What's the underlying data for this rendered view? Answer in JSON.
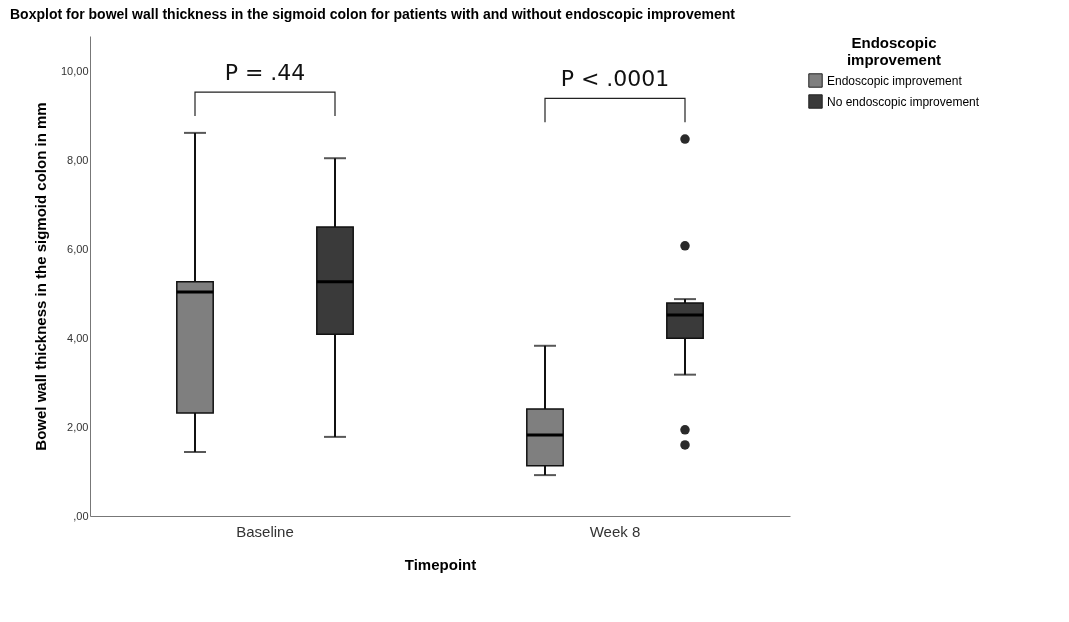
{
  "chart_data": {
    "type": "box",
    "title": "Boxplot for bowel wall thickness in the sigmoid colon for patients with and without endoscopic improvement",
    "xlabel": "Timepoint",
    "ylabel": "Bowel wall thickness in the sigmoid colon in mm",
    "legend_title": "Endoscopic improvement",
    "legend": "top right",
    "categories": [
      "Baseline",
      "Week 8"
    ],
    "ylim": [
      0,
      10.8
    ],
    "yticks": [
      {
        "value": 0,
        "label": ",00"
      },
      {
        "value": 2,
        "label": "2,00"
      },
      {
        "value": 4,
        "label": "4,00"
      },
      {
        "value": 6,
        "label": "6,00"
      },
      {
        "value": 8,
        "label": "8,00"
      },
      {
        "value": 10,
        "label": "10,00"
      }
    ],
    "annotations": [
      "P = .44",
      "P < .0001"
    ],
    "series": [
      {
        "name": "Endoscopic improvement",
        "color": "#7f7f7f",
        "boxes": [
          {
            "low": 1.44,
            "q1": 2.32,
            "median": 5.04,
            "q3": 5.27,
            "high": 8.62
          },
          {
            "low": 0.92,
            "q1": 1.13,
            "median": 1.82,
            "q3": 2.41,
            "high": 3.83
          }
        ]
      },
      {
        "name": "No endoscopic improvement",
        "color": "#3a3a3a",
        "boxes": [
          {
            "low": 1.78,
            "q1": 4.09,
            "median": 5.27,
            "q3": 6.5,
            "high": 8.05
          },
          {
            "low": 3.18,
            "q1": 4.0,
            "median": 4.52,
            "q3": 4.79,
            "high": 4.88,
            "outliers": [
              8.48,
              6.08,
              1.94,
              1.6
            ]
          }
        ]
      }
    ]
  }
}
